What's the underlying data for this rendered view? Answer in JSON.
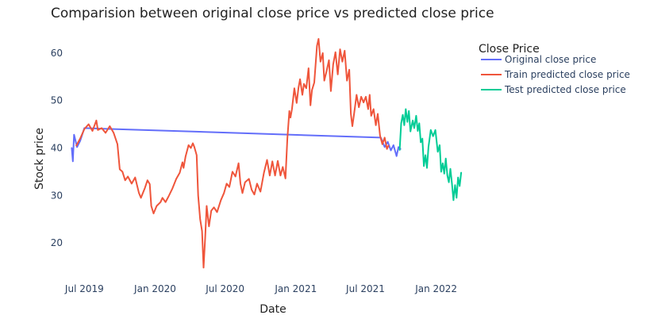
{
  "chart_data": {
    "type": "line",
    "title": "Comparision between original close price vs predicted close price",
    "xlabel": "Date",
    "ylabel": "Stock price",
    "legend_title": "Close Price",
    "legend_position": "top-right",
    "grid": false,
    "x_range": [
      "2019-05-20",
      "2022-04-15"
    ],
    "ylim": [
      13.5,
      64.5
    ],
    "x_ticks": [
      {
        "label": "Jul 2019",
        "date": "2019-07-01"
      },
      {
        "label": "Jan 2020",
        "date": "2020-01-01"
      },
      {
        "label": "Jul 2020",
        "date": "2020-07-01"
      },
      {
        "label": "Jan 2021",
        "date": "2021-01-01"
      },
      {
        "label": "Jul 2021",
        "date": "2021-07-01"
      },
      {
        "label": "Jan 2022",
        "date": "2022-01-01"
      }
    ],
    "y_ticks": [
      20,
      30,
      40,
      50,
      60
    ],
    "series": [
      {
        "name": "Original close price",
        "color": "#636efa",
        "points": [
          [
            "2019-05-29",
            40
          ],
          [
            "2019-06-01",
            37.2
          ],
          [
            "2019-06-04",
            42.8
          ],
          [
            "2019-06-12",
            40.2
          ],
          [
            "2019-06-20",
            41.5
          ],
          [
            "2019-07-01",
            44.2
          ],
          [
            "2021-08-10",
            42.2
          ],
          [
            "2021-08-20",
            40.2
          ],
          [
            "2021-08-28",
            41.3
          ],
          [
            "2021-09-05",
            39.5
          ],
          [
            "2021-09-12",
            40.6
          ],
          [
            "2021-09-20",
            38.3
          ],
          [
            "2021-09-25",
            40.2
          ],
          [
            "2021-09-30",
            39.8
          ]
        ]
      },
      {
        "name": "Train predicted close price",
        "color": "#ef553b",
        "points": [
          [
            "2019-06-10",
            40.5
          ],
          [
            "2019-06-20",
            42
          ],
          [
            "2019-07-01",
            44
          ],
          [
            "2019-07-12",
            45
          ],
          [
            "2019-07-22",
            43.6
          ],
          [
            "2019-08-01",
            45.8
          ],
          [
            "2019-08-05",
            43.8
          ],
          [
            "2019-08-15",
            44.2
          ],
          [
            "2019-08-25",
            43.2
          ],
          [
            "2019-09-05",
            44.6
          ],
          [
            "2019-09-15",
            43.2
          ],
          [
            "2019-09-25",
            40.8
          ],
          [
            "2019-10-01",
            35.5
          ],
          [
            "2019-10-08",
            35
          ],
          [
            "2019-10-15",
            33.2
          ],
          [
            "2019-10-22",
            34
          ],
          [
            "2019-11-01",
            32.5
          ],
          [
            "2019-11-10",
            33.8
          ],
          [
            "2019-11-20",
            30.5
          ],
          [
            "2019-11-25",
            29.5
          ],
          [
            "2019-12-05",
            31.5
          ],
          [
            "2019-12-12",
            33.2
          ],
          [
            "2019-12-18",
            32.4
          ],
          [
            "2019-12-22",
            27.8
          ],
          [
            "2019-12-28",
            26.2
          ],
          [
            "2020-01-05",
            27.8
          ],
          [
            "2020-01-15",
            28.6
          ],
          [
            "2020-01-20",
            29.5
          ],
          [
            "2020-01-28",
            28.6
          ],
          [
            "2020-02-05",
            29.8
          ],
          [
            "2020-02-15",
            31.5
          ],
          [
            "2020-02-25",
            33.5
          ],
          [
            "2020-03-05",
            34.8
          ],
          [
            "2020-03-12",
            37
          ],
          [
            "2020-03-15",
            35.8
          ],
          [
            "2020-03-20",
            38.2
          ],
          [
            "2020-03-28",
            40.6
          ],
          [
            "2020-04-03",
            40
          ],
          [
            "2020-04-08",
            41
          ],
          [
            "2020-04-12",
            40.2
          ],
          [
            "2020-04-18",
            38.5
          ],
          [
            "2020-04-22",
            30
          ],
          [
            "2020-04-27",
            25
          ],
          [
            "2020-05-02",
            22.5
          ],
          [
            "2020-05-06",
            14.8
          ],
          [
            "2020-05-10",
            21
          ],
          [
            "2020-05-14",
            27.8
          ],
          [
            "2020-05-20",
            23.5
          ],
          [
            "2020-05-26",
            26.8
          ],
          [
            "2020-06-02",
            27.5
          ],
          [
            "2020-06-10",
            26.5
          ],
          [
            "2020-06-20",
            29
          ],
          [
            "2020-06-28",
            30.5
          ],
          [
            "2020-07-05",
            32.5
          ],
          [
            "2020-07-12",
            31.8
          ],
          [
            "2020-07-20",
            35
          ],
          [
            "2020-07-28",
            34
          ],
          [
            "2020-08-05",
            36.8
          ],
          [
            "2020-08-10",
            32.5
          ],
          [
            "2020-08-15",
            30.5
          ],
          [
            "2020-08-22",
            32.8
          ],
          [
            "2020-09-01",
            33.5
          ],
          [
            "2020-09-08",
            31.2
          ],
          [
            "2020-09-15",
            30.2
          ],
          [
            "2020-09-22",
            32.5
          ],
          [
            "2020-10-01",
            30.8
          ],
          [
            "2020-10-10",
            34.8
          ],
          [
            "2020-10-18",
            37.5
          ],
          [
            "2020-10-25",
            34.2
          ],
          [
            "2020-11-01",
            37.2
          ],
          [
            "2020-11-08",
            34.2
          ],
          [
            "2020-11-15",
            37.3
          ],
          [
            "2020-11-22",
            34.2
          ],
          [
            "2020-11-28",
            36
          ],
          [
            "2020-12-05",
            33.6
          ],
          [
            "2020-12-10",
            42
          ],
          [
            "2020-12-15",
            47.8
          ],
          [
            "2020-12-18",
            46.4
          ],
          [
            "2020-12-22",
            48.2
          ],
          [
            "2020-12-28",
            52.6
          ],
          [
            "2021-01-03",
            49.5
          ],
          [
            "2021-01-08",
            52.8
          ],
          [
            "2021-01-12",
            54.5
          ],
          [
            "2021-01-18",
            51.2
          ],
          [
            "2021-01-22",
            53.5
          ],
          [
            "2021-01-28",
            52.6
          ],
          [
            "2021-02-03",
            56.8
          ],
          [
            "2021-02-08",
            49
          ],
          [
            "2021-02-12",
            52.2
          ],
          [
            "2021-02-18",
            53.8
          ],
          [
            "2021-02-25",
            61.5
          ],
          [
            "2021-03-01",
            63
          ],
          [
            "2021-03-06",
            58.2
          ],
          [
            "2021-03-12",
            60
          ],
          [
            "2021-03-16",
            54.2
          ],
          [
            "2021-03-22",
            56.2
          ],
          [
            "2021-03-28",
            58.5
          ],
          [
            "2021-04-02",
            52
          ],
          [
            "2021-04-08",
            57.6
          ],
          [
            "2021-04-14",
            60.2
          ],
          [
            "2021-04-20",
            55.5
          ],
          [
            "2021-04-26",
            60.8
          ],
          [
            "2021-05-02",
            58.2
          ],
          [
            "2021-05-08",
            60.5
          ],
          [
            "2021-05-14",
            54.2
          ],
          [
            "2021-05-20",
            56.5
          ],
          [
            "2021-05-24",
            47.2
          ],
          [
            "2021-05-28",
            44.6
          ],
          [
            "2021-06-02",
            47.5
          ],
          [
            "2021-06-08",
            51.2
          ],
          [
            "2021-06-14",
            48.6
          ],
          [
            "2021-06-20",
            50.8
          ],
          [
            "2021-06-26",
            49.6
          ],
          [
            "2021-07-02",
            50.8
          ],
          [
            "2021-07-08",
            48.2
          ],
          [
            "2021-07-12",
            51.2
          ],
          [
            "2021-07-16",
            46.8
          ],
          [
            "2021-07-22",
            48.2
          ],
          [
            "2021-07-28",
            44.8
          ],
          [
            "2021-08-02",
            47.2
          ],
          [
            "2021-08-08",
            42.6
          ],
          [
            "2021-08-14",
            40.8
          ],
          [
            "2021-08-20",
            42.2
          ],
          [
            "2021-08-26",
            39.8
          ],
          [
            "2021-08-30",
            40.5
          ]
        ]
      },
      {
        "name": "Test predicted close price",
        "color": "#00cc96",
        "points": [
          [
            "2021-09-28",
            39.6
          ],
          [
            "2021-10-02",
            45.2
          ],
          [
            "2021-10-06",
            47
          ],
          [
            "2021-10-10",
            44.8
          ],
          [
            "2021-10-14",
            48.2
          ],
          [
            "2021-10-18",
            45.5
          ],
          [
            "2021-10-22",
            47.8
          ],
          [
            "2021-10-26",
            43.5
          ],
          [
            "2021-11-01",
            45.8
          ],
          [
            "2021-11-05",
            44.2
          ],
          [
            "2021-11-10",
            46.8
          ],
          [
            "2021-11-14",
            43.6
          ],
          [
            "2021-11-18",
            45.2
          ],
          [
            "2021-11-22",
            41.2
          ],
          [
            "2021-11-26",
            42
          ],
          [
            "2021-11-30",
            36.2
          ],
          [
            "2021-12-04",
            38.5
          ],
          [
            "2021-12-08",
            35.8
          ],
          [
            "2021-12-12",
            40.2
          ],
          [
            "2021-12-18",
            43.8
          ],
          [
            "2021-12-24",
            42.5
          ],
          [
            "2021-12-30",
            43.8
          ],
          [
            "2022-01-05",
            39.2
          ],
          [
            "2022-01-10",
            40.6
          ],
          [
            "2022-01-14",
            35
          ],
          [
            "2022-01-18",
            36.8
          ],
          [
            "2022-01-22",
            34.6
          ],
          [
            "2022-01-26",
            37.8
          ],
          [
            "2022-01-30",
            34.2
          ],
          [
            "2022-02-03",
            32.8
          ],
          [
            "2022-02-07",
            35.6
          ],
          [
            "2022-02-11",
            32.5
          ],
          [
            "2022-02-15",
            29
          ],
          [
            "2022-02-19",
            32.2
          ],
          [
            "2022-02-23",
            29.5
          ],
          [
            "2022-02-27",
            33.8
          ],
          [
            "2022-03-03",
            32
          ],
          [
            "2022-03-07",
            34.8
          ]
        ]
      }
    ]
  }
}
